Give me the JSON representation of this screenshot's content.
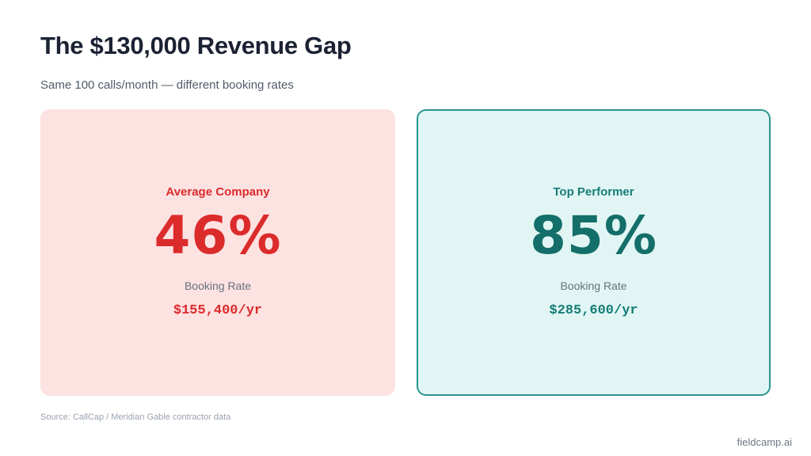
{
  "header": {
    "title": "The $130,000 Revenue Gap",
    "subtitle": "Same 100 calls/month — different booking rates"
  },
  "cards": [
    {
      "label": "Average Company",
      "rate": "46%",
      "rate_caption": "Booking Rate",
      "revenue": "$155,400/yr",
      "accent_color": "#dc2b2b",
      "background_color": "#fde2e2"
    },
    {
      "label": "Top Performer",
      "rate": "85%",
      "rate_caption": "Booking Rate",
      "revenue": "$285,600/yr",
      "accent_color": "#167c78",
      "background_color": "#e1f6f4"
    }
  ],
  "footer": {
    "source": "Source: CallCap / Meridian Gable contractor data",
    "brand": "fieldcamp.ai"
  }
}
